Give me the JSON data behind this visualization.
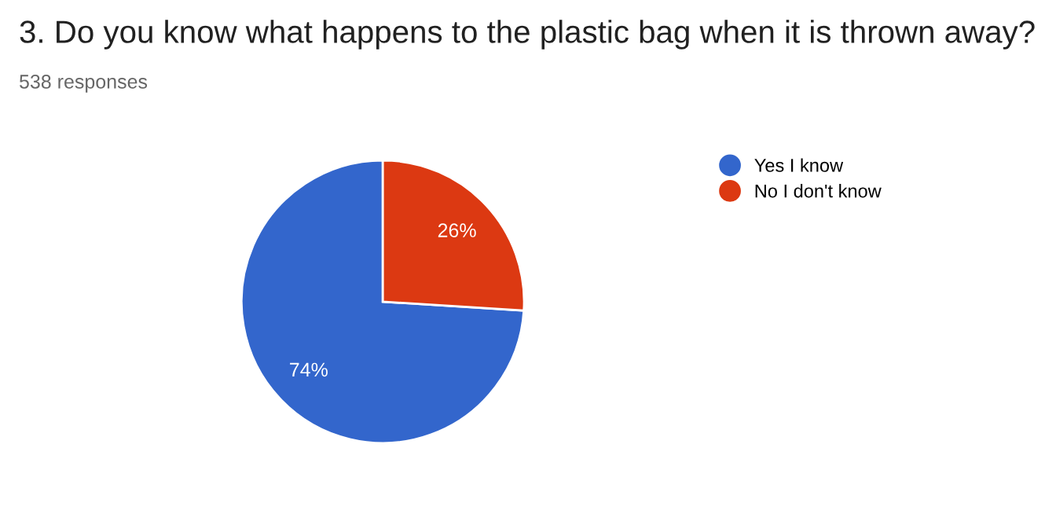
{
  "chart_data": {
    "type": "pie",
    "title": "3. Do you know what happens to the plastic bag when it is thrown away?",
    "subtitle": "538 responses",
    "categories": [
      "Yes I know",
      "No I don't know"
    ],
    "values": [
      74,
      26
    ],
    "colors": [
      "#3366cc",
      "#dc3912"
    ],
    "value_labels": [
      "74%",
      "26%"
    ],
    "legend": "right"
  }
}
